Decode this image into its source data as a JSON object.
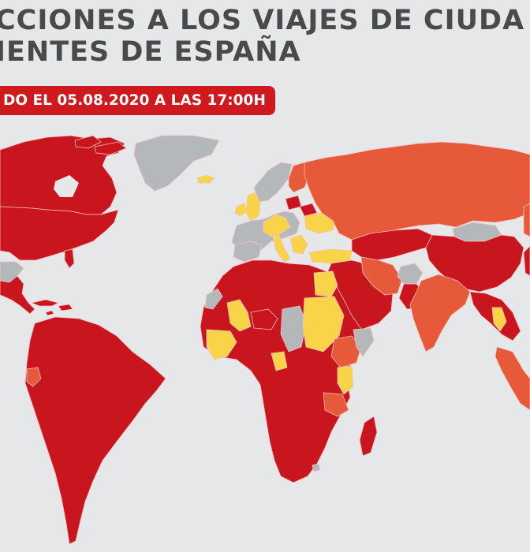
{
  "header": {
    "title_line_1": "CCIONES A LOS VIAJES DE CIUDA",
    "title_line_2": "IENTES DE ESPAÑA",
    "date_badge": "DO EL 05.08.2020 A LAS 17:00H"
  },
  "colors": {
    "background": "#e5e7e9",
    "total_restriction": "#c9151e",
    "partial_restriction": "#e65a3a",
    "quarantine_or_measures": "#f9d449",
    "no_data": "#b5b8bb",
    "borders": "#f1c1c3"
  },
  "map": {
    "projection": "world map, Atlantic-centred, cropped at left and right",
    "regions": [
      {
        "name": "Canada",
        "category": "total_restriction"
      },
      {
        "name": "United States",
        "category": "total_restriction"
      },
      {
        "name": "Greenland",
        "category": "no_data"
      },
      {
        "name": "Iceland",
        "category": "quarantine_or_measures"
      },
      {
        "name": "Mexico",
        "category": "no_data"
      },
      {
        "name": "Central America",
        "category": "total_restriction"
      },
      {
        "name": "Caribbean",
        "category": "total_restriction"
      },
      {
        "name": "South America",
        "category": "total_restriction"
      },
      {
        "name": "Ecuador",
        "category": "partial_restriction"
      },
      {
        "name": "Western Europe",
        "category": "no_data"
      },
      {
        "name": "Central Europe",
        "category": "quarantine_or_measures"
      },
      {
        "name": "Ireland",
        "category": "quarantine_or_measures"
      },
      {
        "name": "United Kingdom",
        "category": "quarantine_or_measures"
      },
      {
        "name": "Scandinavia",
        "category": "no_data"
      },
      {
        "name": "Finland",
        "category": "partial_restriction"
      },
      {
        "name": "Baltics",
        "category": "total_restriction"
      },
      {
        "name": "Ukraine",
        "category": "quarantine_or_measures"
      },
      {
        "name": "Russia",
        "category": "partial_restriction"
      },
      {
        "name": "Turkey",
        "category": "quarantine_or_measures"
      },
      {
        "name": "North Africa",
        "category": "total_restriction"
      },
      {
        "name": "Western Sahara",
        "category": "no_data"
      },
      {
        "name": "Mali",
        "category": "quarantine_or_measures"
      },
      {
        "name": "Niger",
        "category": "total_restriction"
      },
      {
        "name": "Chad",
        "category": "no_data"
      },
      {
        "name": "Egypt",
        "category": "quarantine_or_measures"
      },
      {
        "name": "Sudan",
        "category": "quarantine_or_measures"
      },
      {
        "name": "West Africa coast",
        "category": "quarantine_or_measures"
      },
      {
        "name": "Central and Southern Africa",
        "category": "total_restriction"
      },
      {
        "name": "Ethiopia",
        "category": "partial_restriction"
      },
      {
        "name": "Somalia",
        "category": "no_data"
      },
      {
        "name": "Kenya",
        "category": "quarantine_or_measures"
      },
      {
        "name": "Tanzania",
        "category": "partial_restriction"
      },
      {
        "name": "Madagascar",
        "category": "total_restriction"
      },
      {
        "name": "Lesotho",
        "category": "no_data"
      },
      {
        "name": "Middle East",
        "category": "total_restriction"
      },
      {
        "name": "Iran",
        "category": "partial_restriction"
      },
      {
        "name": "Afghanistan",
        "category": "no_data"
      },
      {
        "name": "Central Asia",
        "category": "total_restriction"
      },
      {
        "name": "India",
        "category": "partial_restriction"
      },
      {
        "name": "China",
        "category": "total_restriction"
      },
      {
        "name": "Mongolia",
        "category": "no_data"
      },
      {
        "name": "Southeast Asia",
        "category": "total_restriction"
      },
      {
        "name": "Thailand",
        "category": "quarantine_or_measures"
      },
      {
        "name": "Malaysia and Indonesia",
        "category": "partial_restriction"
      }
    ]
  }
}
